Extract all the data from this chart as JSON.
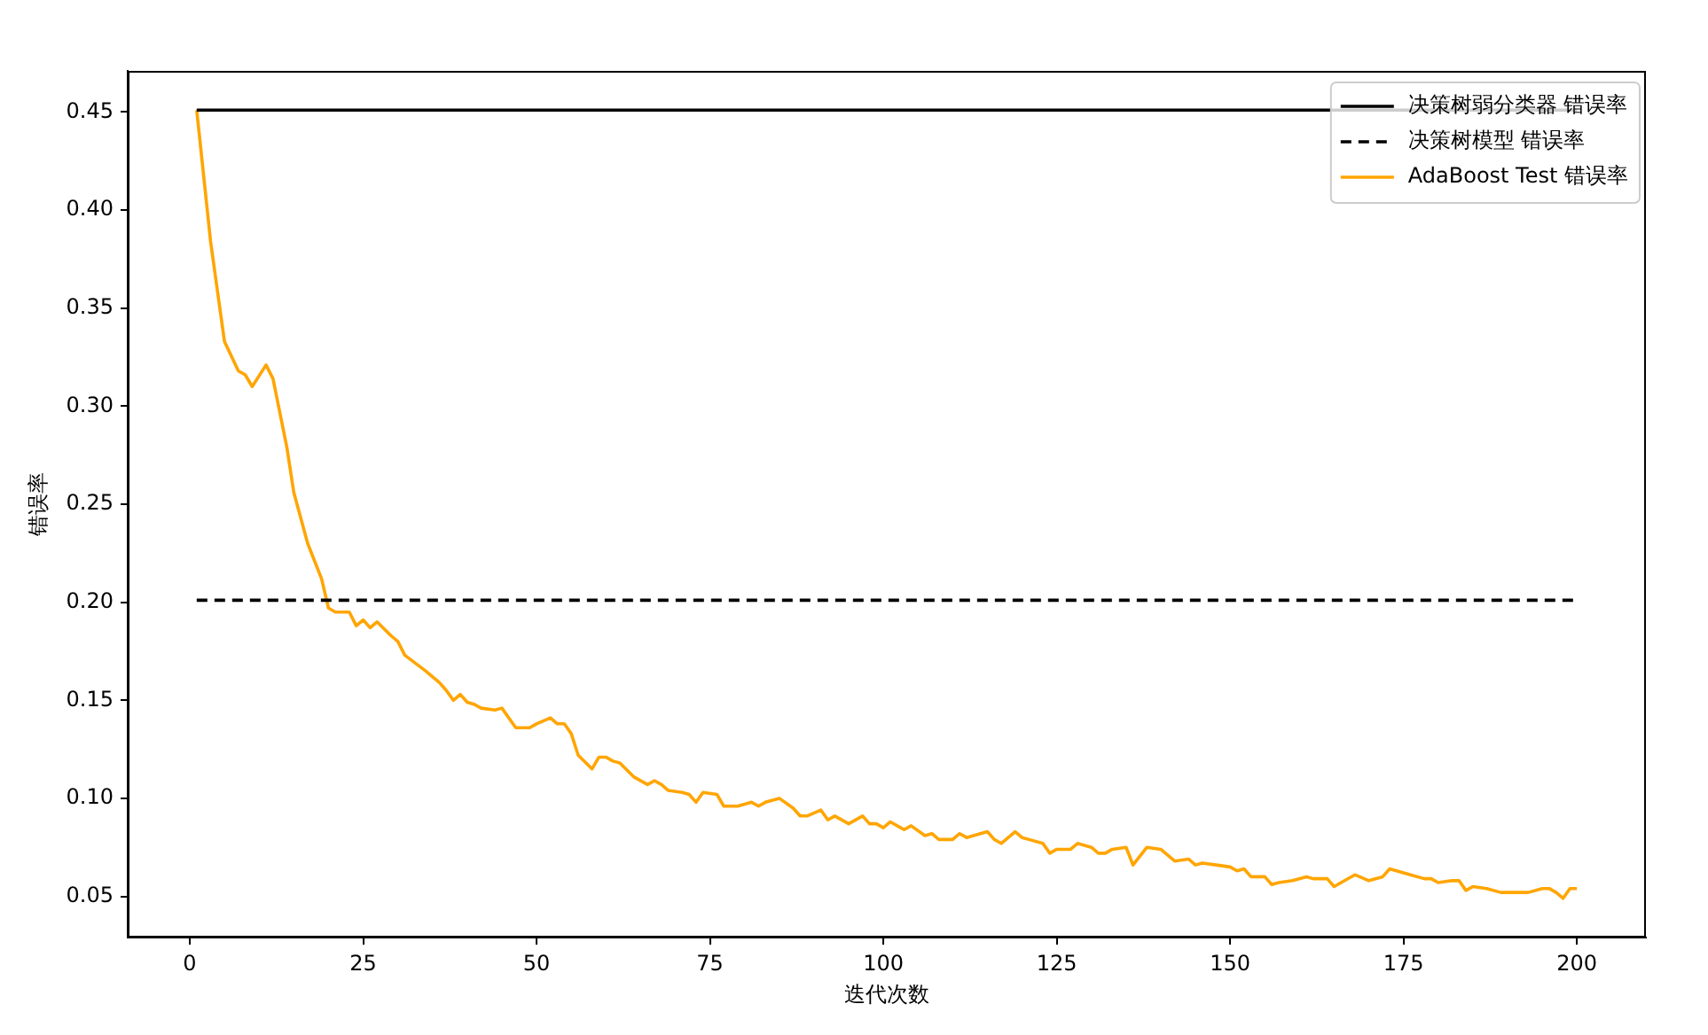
{
  "chart_data": {
    "type": "line",
    "xlabel": "迭代次数",
    "ylabel": "错误率",
    "xlim": [
      -8.95,
      209.95
    ],
    "xticks": [
      0,
      25,
      50,
      75,
      100,
      125,
      150,
      175,
      200
    ],
    "ylim": [
      0.029,
      0.471
    ],
    "yticks": [
      {
        "value": 0.05,
        "label": "0.05"
      },
      {
        "value": 0.1,
        "label": "0.10"
      },
      {
        "value": 0.15,
        "label": "0.15"
      },
      {
        "value": 0.2,
        "label": "0.20"
      },
      {
        "value": 0.25,
        "label": "0.25"
      },
      {
        "value": 0.3,
        "label": "0.30"
      },
      {
        "value": 0.35,
        "label": "0.35"
      },
      {
        "value": 0.4,
        "label": "0.40"
      },
      {
        "value": 0.45,
        "label": "0.45"
      }
    ],
    "grid": false,
    "legend": "top right",
    "series": [
      {
        "name": "决策树弱分类器 错误率",
        "color": "#000000",
        "x": [
          1,
          200
        ],
        "values": [
          0.451,
          0.451
        ]
      },
      {
        "name": "决策树模型 错误率",
        "color": "#000000",
        "line_style": "dashed",
        "x": [
          1,
          200
        ],
        "values": [
          0.201,
          0.201
        ]
      },
      {
        "name": "AdaBoost Test 错误率",
        "color": "#ffa500",
        "x": [
          1,
          3,
          5,
          7,
          8,
          9,
          11,
          12,
          14,
          15,
          17,
          19,
          20,
          21,
          23,
          24,
          25,
          26,
          27,
          29,
          30,
          31,
          34,
          36,
          37,
          38,
          39,
          40,
          41,
          42,
          44,
          45,
          47,
          49,
          50,
          52,
          53,
          54,
          55,
          56,
          58,
          59,
          60,
          61,
          62,
          64,
          66,
          67,
          68,
          69,
          71,
          72,
          73,
          74,
          76,
          77,
          79,
          81,
          82,
          83,
          85,
          87,
          88,
          89,
          91,
          92,
          93,
          95,
          97,
          98,
          99,
          100,
          101,
          103,
          104,
          106,
          107,
          108,
          110,
          111,
          112,
          115,
          116,
          117,
          119,
          120,
          121,
          123,
          124,
          125,
          127,
          128,
          130,
          131,
          132,
          133,
          135,
          136,
          138,
          140,
          142,
          144,
          145,
          146,
          148,
          150,
          151,
          152,
          153,
          155,
          156,
          157,
          159,
          161,
          162,
          164,
          165,
          166,
          168,
          170,
          172,
          173,
          174,
          176,
          178,
          179,
          180,
          182,
          183,
          184,
          185,
          187,
          189,
          190,
          191,
          193,
          195,
          196,
          197,
          198,
          199,
          200
        ],
        "values": [
          0.451,
          0.384,
          0.333,
          0.318,
          0.316,
          0.31,
          0.321,
          0.314,
          0.279,
          0.256,
          0.23,
          0.212,
          0.197,
          0.195,
          0.195,
          0.188,
          0.191,
          0.187,
          0.19,
          0.183,
          0.18,
          0.173,
          0.165,
          0.159,
          0.155,
          0.15,
          0.153,
          0.149,
          0.148,
          0.146,
          0.145,
          0.146,
          0.136,
          0.136,
          0.138,
          0.141,
          0.138,
          0.138,
          0.133,
          0.122,
          0.115,
          0.121,
          0.121,
          0.119,
          0.118,
          0.111,
          0.107,
          0.109,
          0.107,
          0.104,
          0.103,
          0.102,
          0.098,
          0.103,
          0.102,
          0.096,
          0.096,
          0.098,
          0.096,
          0.098,
          0.1,
          0.095,
          0.091,
          0.091,
          0.094,
          0.089,
          0.091,
          0.087,
          0.091,
          0.087,
          0.087,
          0.085,
          0.088,
          0.084,
          0.086,
          0.081,
          0.082,
          0.079,
          0.079,
          0.082,
          0.08,
          0.083,
          0.079,
          0.077,
          0.083,
          0.08,
          0.079,
          0.077,
          0.072,
          0.074,
          0.074,
          0.077,
          0.075,
          0.072,
          0.072,
          0.074,
          0.075,
          0.066,
          0.075,
          0.074,
          0.068,
          0.069,
          0.066,
          0.067,
          0.066,
          0.065,
          0.063,
          0.064,
          0.06,
          0.06,
          0.056,
          0.057,
          0.058,
          0.06,
          0.059,
          0.059,
          0.055,
          0.057,
          0.061,
          0.058,
          0.06,
          0.064,
          0.063,
          0.061,
          0.059,
          0.059,
          0.057,
          0.058,
          0.058,
          0.053,
          0.055,
          0.054,
          0.052,
          0.052,
          0.052,
          0.052,
          0.054,
          0.054,
          0.052,
          0.049,
          0.054,
          0.054
        ]
      }
    ]
  }
}
